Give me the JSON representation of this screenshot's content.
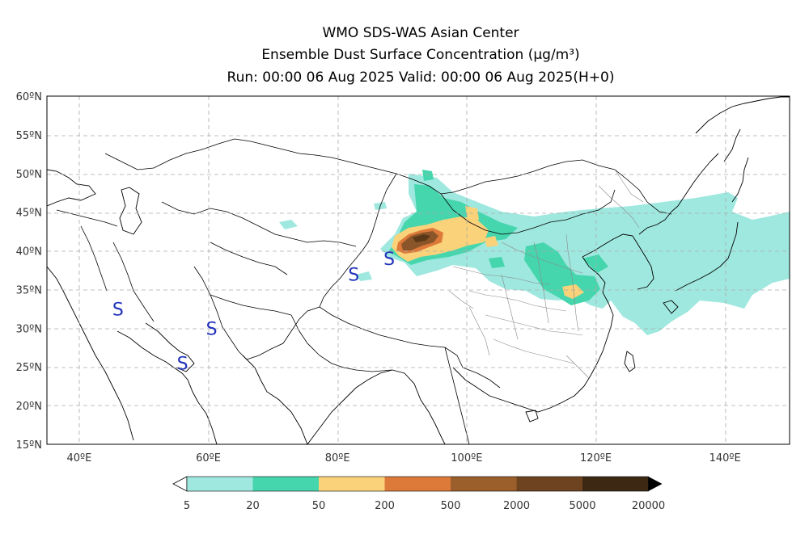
{
  "header": {
    "line1": "WMO SDS-WAS Asian Center",
    "line2": "Ensemble Dust Surface Concentration (μg/m³)",
    "line3": "Run: 00:00 06 Aug 2025    Valid: 00:00 06 Aug 2025(H+0)"
  },
  "map": {
    "lon_range": [
      35,
      150
    ],
    "lat_range": [
      15,
      60
    ],
    "lat_labels": [
      "60ºN",
      "55ºN",
      "50ºN",
      "45ºN",
      "40ºN",
      "35ºN",
      "30ºN",
      "25ºN",
      "20ºN",
      "15ºN"
    ],
    "lon_labels": [
      "40ºE",
      "60ºE",
      "80ºE",
      "100ºE",
      "120ºE",
      "140ºE"
    ],
    "storm_marker": "S",
    "markers": [
      {
        "lon": 46,
        "lat": 32.5
      },
      {
        "lon": 56,
        "lat": 25.5
      },
      {
        "lon": 60.5,
        "lat": 30
      },
      {
        "lon": 82.5,
        "lat": 37
      },
      {
        "lon": 88,
        "lat": 39
      }
    ]
  },
  "legend": {
    "labels": [
      "5",
      "20",
      "50",
      "200",
      "500",
      "2000",
      "5000",
      "20000"
    ],
    "colors": [
      "#9fe8df",
      "#46d6ad",
      "#fad27a",
      "#dd7a3a",
      "#9a5f2a",
      "#6e4420",
      "#3d2814"
    ]
  }
}
